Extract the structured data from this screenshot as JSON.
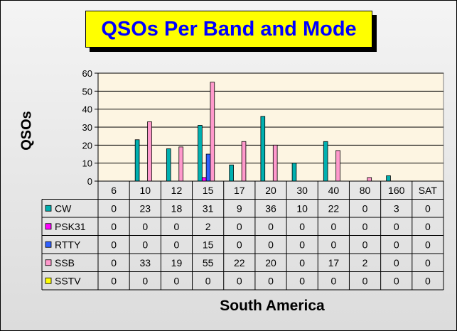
{
  "chart_data": {
    "type": "bar",
    "title": "QSOs Per Band and Mode",
    "xlabel": "South America",
    "ylabel": "QSOs",
    "ylim": [
      0,
      60
    ],
    "yticks": [
      "0",
      "10",
      "20",
      "30",
      "40",
      "50",
      "60"
    ],
    "categories": [
      "6",
      "10",
      "12",
      "15",
      "17",
      "20",
      "30",
      "40",
      "80",
      "160",
      "SAT"
    ],
    "series": [
      {
        "name": "CW",
        "color": "#00b0b0",
        "values": [
          0,
          23,
          18,
          31,
          9,
          36,
          10,
          22,
          0,
          3,
          0
        ]
      },
      {
        "name": "PSK31",
        "color": "#ff00ff",
        "values": [
          0,
          0,
          0,
          2,
          0,
          0,
          0,
          0,
          0,
          0,
          0
        ]
      },
      {
        "name": "RTTY",
        "color": "#3060ff",
        "values": [
          0,
          0,
          0,
          15,
          0,
          0,
          0,
          0,
          0,
          0,
          0
        ]
      },
      {
        "name": "SSB",
        "color": "#ff99cc",
        "values": [
          0,
          33,
          19,
          55,
          22,
          20,
          0,
          17,
          2,
          0,
          0
        ]
      },
      {
        "name": "SSTV",
        "color": "#ffff00",
        "values": [
          0,
          0,
          0,
          0,
          0,
          0,
          0,
          0,
          0,
          0,
          0
        ]
      }
    ],
    "legend_placement": "data-table",
    "grid": true,
    "plot_background": "#fdf5e2"
  }
}
